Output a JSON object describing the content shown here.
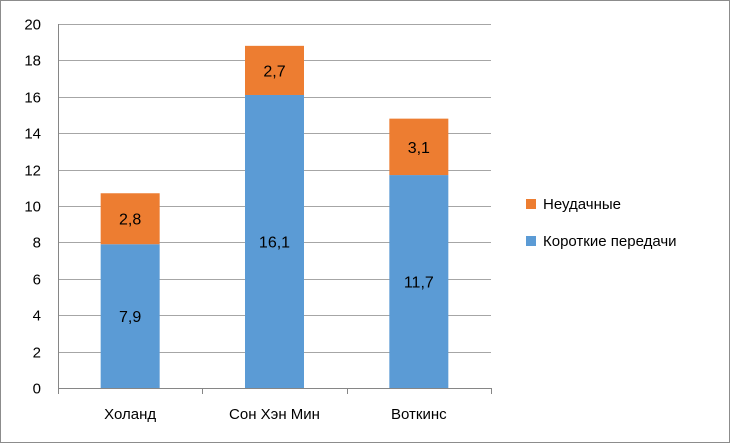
{
  "chart_data": {
    "type": "bar",
    "stacked": true,
    "categories": [
      "Холанд",
      "Сон Хэн Мин",
      "Воткинс"
    ],
    "series": [
      {
        "name": "Короткие передачи",
        "values": [
          7.9,
          16.1,
          11.7
        ],
        "labels": [
          "7,9",
          "16,1",
          "11,7"
        ],
        "color": "#5b9bd5"
      },
      {
        "name": "Неудачные",
        "values": [
          2.8,
          2.7,
          3.1
        ],
        "labels": [
          "2,8",
          "2,7",
          "3,1"
        ],
        "color": "#ed7d31"
      }
    ],
    "ylim": [
      0,
      20
    ],
    "yticks": [
      "0",
      "2",
      "4",
      "6",
      "8",
      "10",
      "12",
      "14",
      "16",
      "18",
      "20"
    ],
    "grid": true,
    "legend_position": "right",
    "legend_order": [
      "Неудачные",
      "Короткие передачи"
    ]
  }
}
